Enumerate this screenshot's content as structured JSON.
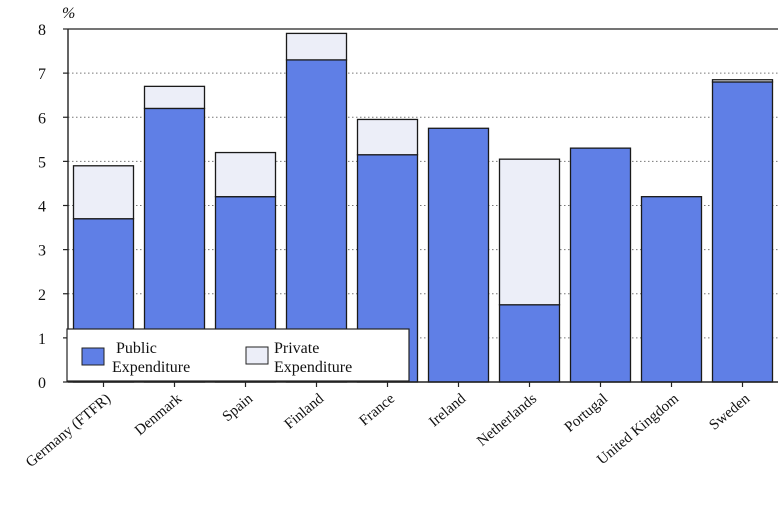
{
  "chart_data": {
    "type": "bar",
    "stacked": true,
    "ylabel": "%",
    "ylim": [
      0,
      8
    ],
    "yticks": [
      "0",
      "1",
      "2",
      "3",
      "4",
      "5",
      "6",
      "7",
      "8"
    ],
    "grid": true,
    "legend_position": "bottom-left",
    "categories": [
      "Germany (FTFR)",
      "Denmark",
      "Spain",
      "Finland",
      "France",
      "Ireland",
      "Netherlands",
      "Portugal",
      "United Kingdom",
      "Sweden"
    ],
    "series": [
      {
        "name": "Public Expenditure",
        "values": [
          3.7,
          6.2,
          4.2,
          7.3,
          5.15,
          5.75,
          1.75,
          5.3,
          4.2,
          6.8
        ]
      },
      {
        "name": "Private Expenditure",
        "values": [
          1.2,
          0.5,
          1.0,
          0.6,
          0.8,
          0.0,
          3.3,
          0.0,
          0.0,
          0.05
        ]
      }
    ],
    "legend": {
      "public_line1": "Public",
      "public_line2": "Expenditure",
      "private_line1": "Private",
      "private_line2": "Expenditure"
    },
    "colors": {
      "public": "#5f7fe6",
      "private": "#eceef8",
      "outline": "#1a1a1a"
    }
  }
}
